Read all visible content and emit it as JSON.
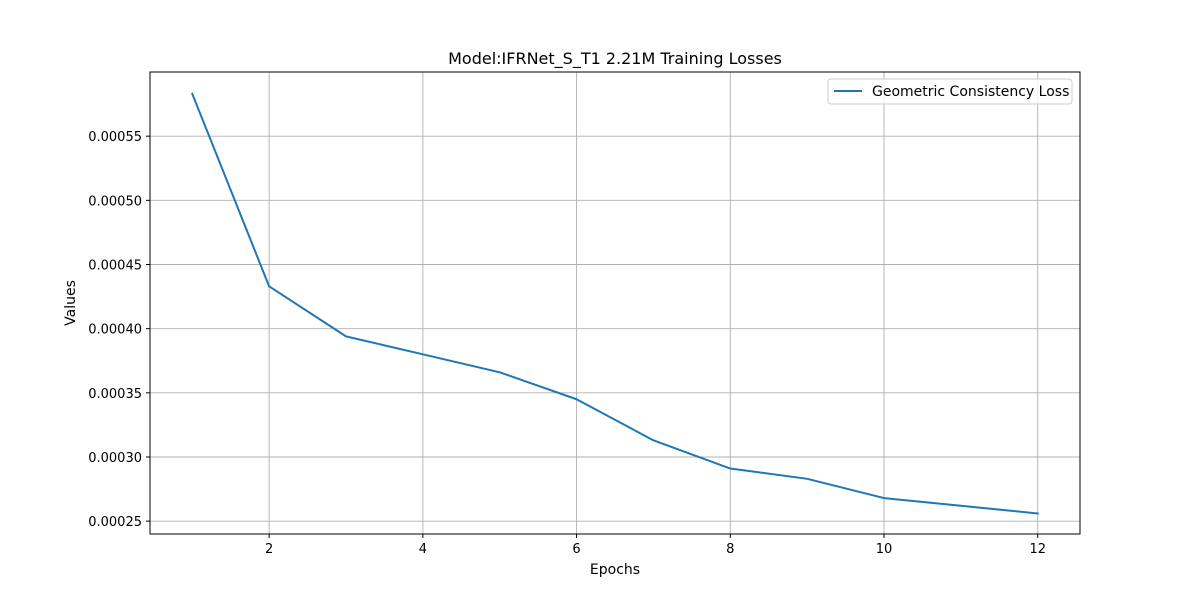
{
  "chart_data": {
    "type": "line",
    "title": "Model:IFRNet_S_T1 2.21M Training Losses",
    "xlabel": "Epochs",
    "ylabel": "Values",
    "x": [
      1,
      2,
      3,
      4,
      5,
      6,
      7,
      8,
      9,
      10,
      11,
      12
    ],
    "series": [
      {
        "name": "Geometric Consistency Loss",
        "color": "#1f77b4",
        "values": [
          0.000583,
          0.000433,
          0.000394,
          0.00038,
          0.000366,
          0.000345,
          0.000313,
          0.000291,
          0.000283,
          0.000268,
          0.000262,
          0.000256
        ]
      }
    ],
    "xlim": [
      0.45,
      12.55
    ],
    "ylim": [
      0.00024,
      0.0006
    ],
    "xticks": [
      2,
      4,
      6,
      8,
      10,
      12
    ],
    "xtick_labels": [
      "2",
      "4",
      "6",
      "8",
      "10",
      "12"
    ],
    "yticks": [
      0.00025,
      0.0003,
      0.00035,
      0.0004,
      0.00045,
      0.0005,
      0.00055
    ],
    "ytick_labels": [
      "0.00025",
      "0.00030",
      "0.00035",
      "0.00040",
      "0.00045",
      "0.00050",
      "0.00055"
    ],
    "grid": true,
    "legend_position": "top-right"
  }
}
